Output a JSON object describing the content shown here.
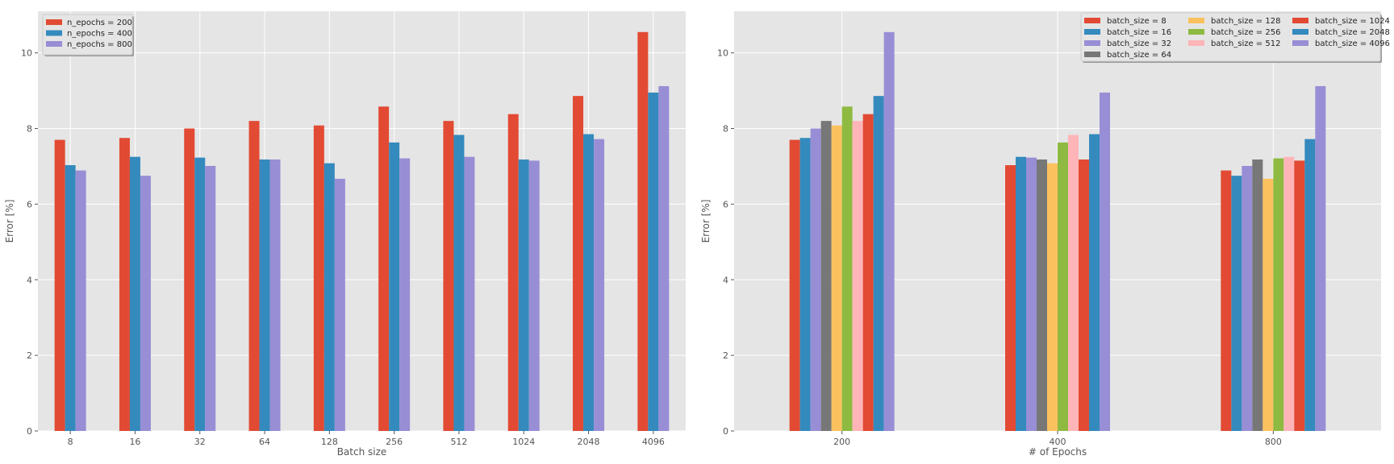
{
  "chart_data": [
    {
      "type": "bar",
      "title": "",
      "xlabel": "Batch size",
      "ylabel": "Error [%]",
      "ylim": [
        0,
        11.1
      ],
      "yticks": [
        0,
        2,
        4,
        6,
        8,
        10
      ],
      "categories": [
        "8",
        "16",
        "32",
        "64",
        "128",
        "256",
        "512",
        "1024",
        "2048",
        "4096"
      ],
      "legend_position": "top-left",
      "series": [
        {
          "name": "n_epochs = 200",
          "color": "#E24A33",
          "values": [
            7.7,
            7.75,
            8.0,
            8.2,
            8.08,
            8.58,
            8.2,
            8.38,
            8.86,
            10.55
          ]
        },
        {
          "name": "n_epochs = 400",
          "color": "#348ABD",
          "values": [
            7.03,
            7.25,
            7.23,
            7.18,
            7.08,
            7.63,
            7.83,
            7.18,
            7.85,
            8.95
          ]
        },
        {
          "name": "n_epochs = 800",
          "color": "#988ED5",
          "values": [
            6.89,
            6.75,
            7.01,
            7.18,
            6.67,
            7.21,
            7.25,
            7.15,
            7.72,
            9.12
          ]
        }
      ]
    },
    {
      "type": "bar",
      "title": "",
      "xlabel": "# of Epochs",
      "ylabel": "Error [%]",
      "ylim": [
        0,
        11.1
      ],
      "yticks": [
        0,
        2,
        4,
        6,
        8,
        10
      ],
      "categories": [
        "200",
        "400",
        "800"
      ],
      "legend_position": "top-right",
      "legend_columns": 3,
      "series": [
        {
          "name": "batch_size = 8",
          "color": "#E24A33",
          "values": [
            7.7,
            7.03,
            6.89
          ]
        },
        {
          "name": "batch_size = 16",
          "color": "#348ABD",
          "values": [
            7.75,
            7.25,
            6.75
          ]
        },
        {
          "name": "batch_size = 32",
          "color": "#988ED5",
          "values": [
            8.0,
            7.23,
            7.01
          ]
        },
        {
          "name": "batch_size = 64",
          "color": "#777777",
          "values": [
            8.2,
            7.18,
            7.18
          ]
        },
        {
          "name": "batch_size = 128",
          "color": "#FBC15E",
          "values": [
            8.08,
            7.08,
            6.67
          ]
        },
        {
          "name": "batch_size = 256",
          "color": "#8EBA42",
          "values": [
            8.58,
            7.63,
            7.21
          ]
        },
        {
          "name": "batch_size = 512",
          "color": "#FFB5B8",
          "values": [
            8.2,
            7.83,
            7.25
          ]
        },
        {
          "name": "batch_size = 1024",
          "color": "#E24A33",
          "values": [
            8.38,
            7.18,
            7.15
          ]
        },
        {
          "name": "batch_size = 2048",
          "color": "#348ABD",
          "values": [
            8.86,
            7.85,
            7.72
          ]
        },
        {
          "name": "batch_size = 4096",
          "color": "#988ED5",
          "values": [
            10.55,
            8.95,
            9.12
          ]
        }
      ]
    }
  ]
}
